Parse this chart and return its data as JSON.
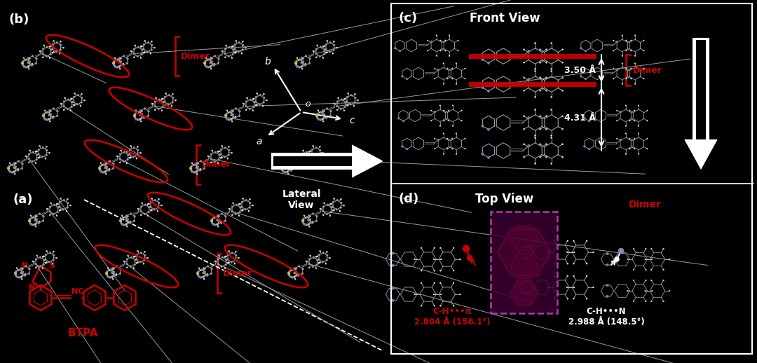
{
  "background_color": "#000000",
  "figure_width": 10.8,
  "figure_height": 5.18,
  "dpi": 100,
  "panels": {
    "a_label": "(a)",
    "b_label": "(b)",
    "c_label": "(c)",
    "d_label": "(d)"
  },
  "text_elements": {
    "lateral_view": "Lateral\nView",
    "front_view": "Front View",
    "top_view": "Top View",
    "dimer": "Dimer",
    "btpa": "BTPA",
    "distance_1": "3.50 Å",
    "distance_2": "4.31 Å",
    "ch_pi": "C-H•••π",
    "ch_pi_dist": "2.804 Å (156.1°)",
    "ch_n": "C-H•••N",
    "ch_n_dist": "2.988 Å (148.5°)",
    "axis_b": "b",
    "axis_a": "a",
    "axis_o": "o",
    "axis_c": "c"
  },
  "colors": {
    "red": "#CC0000",
    "bright_red": "#FF2200",
    "white": "#FFFFFF",
    "gray": "#888888",
    "atom_gray": "#999999",
    "dark_gray": "#555555",
    "light_gray": "#BBBBBB",
    "blue_gray": "#8888BB",
    "magenta_fill": "#3A0030",
    "magenta_edge": "#CC44CC",
    "hot_red": "#DD0033"
  }
}
